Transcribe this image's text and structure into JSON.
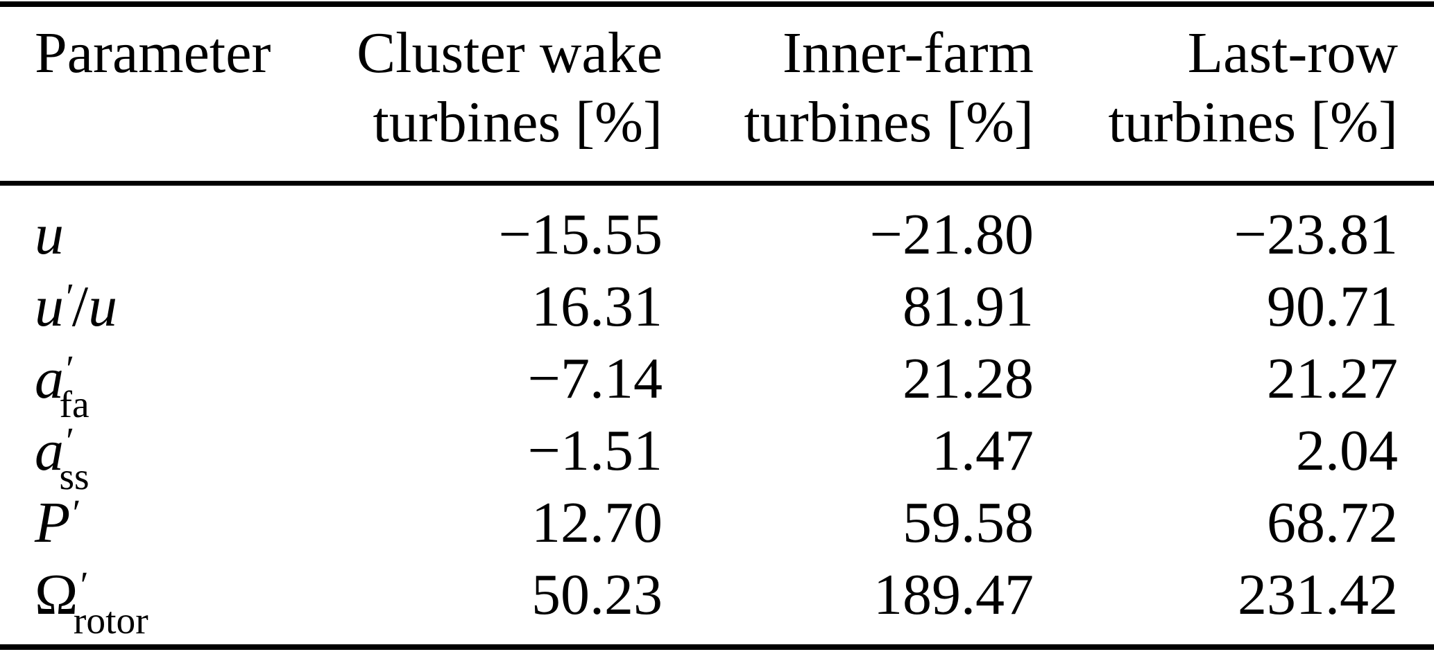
{
  "table": {
    "header": {
      "col1": {
        "line1": "Parameter",
        "line2": ""
      },
      "col2": {
        "line1": "Cluster wake",
        "line2": "turbines [%]"
      },
      "col3": {
        "line1": "Inner-farm",
        "line2": "turbines [%]"
      },
      "col4": {
        "line1": "Last-row",
        "line2": "turbines [%]"
      }
    },
    "rows": [
      {
        "param": {
          "base": "u",
          "prime": "",
          "sub": "",
          "slash": "",
          "base2": ""
        },
        "values": [
          "−15.55",
          "−21.80",
          "−23.81"
        ]
      },
      {
        "param": {
          "base": "u",
          "prime": "′",
          "sub": "",
          "slash": "/",
          "base2": "u"
        },
        "values": [
          "16.31",
          "81.91",
          "90.71"
        ]
      },
      {
        "param": {
          "base": "a",
          "prime": "′",
          "sub": "fa",
          "slash": "",
          "base2": ""
        },
        "values": [
          "−7.14",
          "21.28",
          "21.27"
        ]
      },
      {
        "param": {
          "base": "a",
          "prime": "′",
          "sub": "ss",
          "slash": "",
          "base2": ""
        },
        "values": [
          "−1.51",
          "1.47",
          "2.04"
        ]
      },
      {
        "param": {
          "base": "P",
          "prime": "′",
          "sub": "",
          "slash": "",
          "base2": ""
        },
        "values": [
          "12.70",
          "59.58",
          "68.72"
        ]
      },
      {
        "param": {
          "base": "Ω",
          "prime": "′",
          "sub": "rotor",
          "slash": "",
          "base2": ""
        },
        "values": [
          "50.23",
          "189.47",
          "231.42"
        ]
      }
    ]
  },
  "colors": {
    "text": "#000000",
    "background": "#ffffff",
    "rule": "#000000"
  }
}
